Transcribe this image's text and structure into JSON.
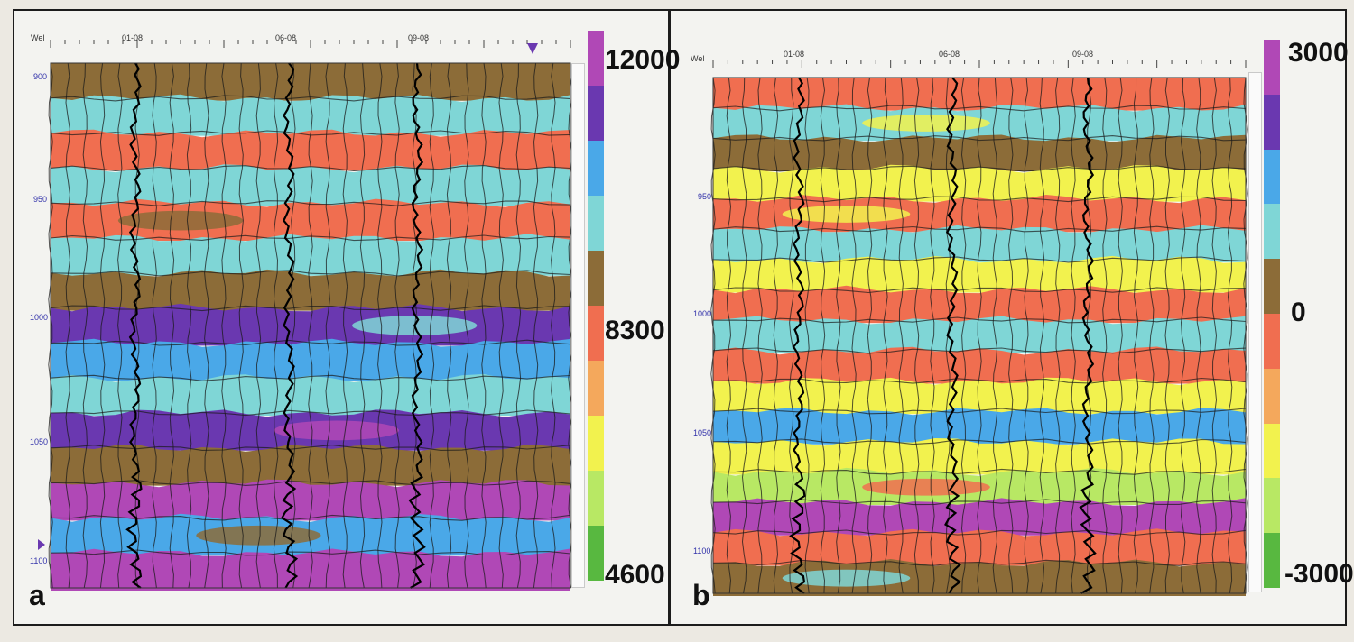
{
  "colors": {
    "scale_top_to_bottom": [
      "#b048b6",
      "#6a38b0",
      "#4aa8e8",
      "#7fd6d6",
      "#8c6c38",
      "#f06e50",
      "#f4a85c",
      "#f2f24e",
      "#b8e864",
      "#58b840"
    ]
  },
  "panels": [
    {
      "id": "a",
      "label": "a",
      "axis_label": "Wel",
      "wells": [
        "01-08",
        "06-08",
        "09-08"
      ],
      "depth_ticks": [
        "900",
        "950",
        "1000",
        "1050",
        "1100"
      ],
      "scale_labels": [
        "12000",
        "8300",
        "4600"
      ],
      "layers": [
        "#8c6c38",
        "#7fd6d6",
        "#f06e50",
        "#7fd6d6",
        "#f06e50",
        "#7fd6d6",
        "#8c6c38",
        "#6a38b0",
        "#4aa8e8",
        "#7fd6d6",
        "#6a38b0",
        "#8c6c38",
        "#b048b6",
        "#4aa8e8",
        "#b048b6"
      ]
    },
    {
      "id": "b",
      "label": "b",
      "axis_label": "Wel",
      "wells": [
        "01-08",
        "06-08",
        "09-08"
      ],
      "depth_ticks": [
        "950",
        "1000",
        "1050",
        "1100"
      ],
      "scale_labels": [
        "3000",
        "0",
        "-3000"
      ],
      "layers": [
        "#f06e50",
        "#7fd6d6",
        "#8c6c38",
        "#f2f24e",
        "#f06e50",
        "#7fd6d6",
        "#f2f24e",
        "#f06e50",
        "#7fd6d6",
        "#f06e50",
        "#f2f24e",
        "#4aa8e8",
        "#f2f24e",
        "#b8e864",
        "#b048b6",
        "#f06e50",
        "#8c6c38"
      ]
    }
  ]
}
